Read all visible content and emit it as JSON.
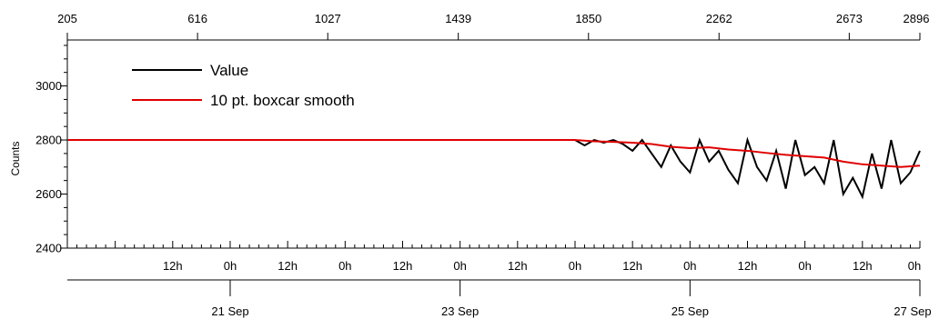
{
  "chart_data": {
    "type": "line",
    "title": "",
    "xlabel": "",
    "ylabel": "Counts",
    "ylim": [
      2400,
      3170
    ],
    "xlim": [
      "2024-09-19T14:00:00",
      "2024-09-27T00:00:00"
    ],
    "legend_position": "top-left",
    "colors": {
      "value": "#000000",
      "smooth": "#e00000",
      "axis": "#000000",
      "background": "#ffffff"
    },
    "top_axis": {
      "label": "",
      "tick_labels": [
        "205",
        "616",
        "1027",
        "1439",
        "1850",
        "2262",
        "2673",
        "2896"
      ],
      "tick_values": [
        205,
        616,
        1027,
        1439,
        1850,
        2262,
        2673,
        2896
      ]
    },
    "y_axis": {
      "tick_labels": [
        "2400",
        "2600",
        "2800",
        "3000"
      ],
      "tick_values": [
        2400,
        2600,
        2800,
        3000
      ]
    },
    "x_axis_hours": {
      "tick_labels": [
        "12h",
        "0h",
        "12h",
        "0h",
        "12h",
        "0h",
        "12h",
        "0h",
        "12h",
        "0h",
        "12h",
        "0h",
        "12h",
        "0h"
      ],
      "tick_times": [
        "2024-09-20T12:00:00",
        "2024-09-21T00:00:00",
        "2024-09-21T12:00:00",
        "2024-09-22T00:00:00",
        "2024-09-22T12:00:00",
        "2024-09-23T00:00:00",
        "2024-09-23T12:00:00",
        "2024-09-24T00:00:00",
        "2024-09-24T12:00:00",
        "2024-09-25T00:00:00",
        "2024-09-25T12:00:00",
        "2024-09-26T00:00:00",
        "2024-09-26T12:00:00",
        "2024-09-27T00:00:00"
      ]
    },
    "x_axis_dates": {
      "tick_labels": [
        "21 Sep",
        "23 Sep",
        "25 Sep",
        "27 Sep"
      ],
      "tick_times": [
        "2024-09-21T00:00:00",
        "2024-09-23T00:00:00",
        "2024-09-25T00:00:00",
        "2024-09-27T00:00:00"
      ]
    },
    "series": [
      {
        "name": "Value",
        "x": [
          "2024-09-19T14:00:00",
          "2024-09-20T00:00:00",
          "2024-09-21T00:00:00",
          "2024-09-22T00:00:00",
          "2024-09-23T00:00:00",
          "2024-09-24T00:00:00",
          "2024-09-24T02:00:00",
          "2024-09-24T04:00:00",
          "2024-09-24T06:00:00",
          "2024-09-24T08:00:00",
          "2024-09-24T10:00:00",
          "2024-09-24T12:00:00",
          "2024-09-24T14:00:00",
          "2024-09-24T16:00:00",
          "2024-09-24T18:00:00",
          "2024-09-24T20:00:00",
          "2024-09-24T22:00:00",
          "2024-09-25T00:00:00",
          "2024-09-25T02:00:00",
          "2024-09-25T04:00:00",
          "2024-09-25T06:00:00",
          "2024-09-25T08:00:00",
          "2024-09-25T10:00:00",
          "2024-09-25T12:00:00",
          "2024-09-25T14:00:00",
          "2024-09-25T16:00:00",
          "2024-09-25T18:00:00",
          "2024-09-25T20:00:00",
          "2024-09-25T22:00:00",
          "2024-09-26T00:00:00",
          "2024-09-26T02:00:00",
          "2024-09-26T04:00:00",
          "2024-09-26T06:00:00",
          "2024-09-26T08:00:00",
          "2024-09-26T10:00:00",
          "2024-09-26T12:00:00",
          "2024-09-26T14:00:00",
          "2024-09-26T16:00:00",
          "2024-09-26T18:00:00",
          "2024-09-26T20:00:00",
          "2024-09-26T22:00:00",
          "2024-09-27T00:00:00"
        ],
        "y": [
          2800,
          2800,
          2800,
          2800,
          2800,
          2800,
          2780,
          2800,
          2790,
          2800,
          2785,
          2760,
          2800,
          2750,
          2700,
          2780,
          2720,
          2680,
          2800,
          2720,
          2760,
          2690,
          2640,
          2800,
          2700,
          2650,
          2760,
          2620,
          2800,
          2670,
          2700,
          2640,
          2800,
          2600,
          2660,
          2590,
          2750,
          2620,
          2800,
          2640,
          2680,
          2760
        ]
      },
      {
        "name": "10 pt. boxcar smooth",
        "x": [
          "2024-09-19T14:00:00",
          "2024-09-20T00:00:00",
          "2024-09-21T00:00:00",
          "2024-09-22T00:00:00",
          "2024-09-23T00:00:00",
          "2024-09-24T00:00:00",
          "2024-09-24T04:00:00",
          "2024-09-24T08:00:00",
          "2024-09-24T12:00:00",
          "2024-09-24T16:00:00",
          "2024-09-24T20:00:00",
          "2024-09-25T00:00:00",
          "2024-09-25T04:00:00",
          "2024-09-25T08:00:00",
          "2024-09-25T12:00:00",
          "2024-09-25T16:00:00",
          "2024-09-25T20:00:00",
          "2024-09-26T00:00:00",
          "2024-09-26T04:00:00",
          "2024-09-26T08:00:00",
          "2024-09-26T12:00:00",
          "2024-09-26T16:00:00",
          "2024-09-26T20:00:00",
          "2024-09-27T00:00:00"
        ],
        "y": [
          2800,
          2800,
          2800,
          2800,
          2800,
          2800,
          2795,
          2793,
          2790,
          2785,
          2775,
          2770,
          2773,
          2765,
          2760,
          2752,
          2745,
          2740,
          2735,
          2720,
          2710,
          2705,
          2700,
          2705
        ]
      }
    ]
  }
}
